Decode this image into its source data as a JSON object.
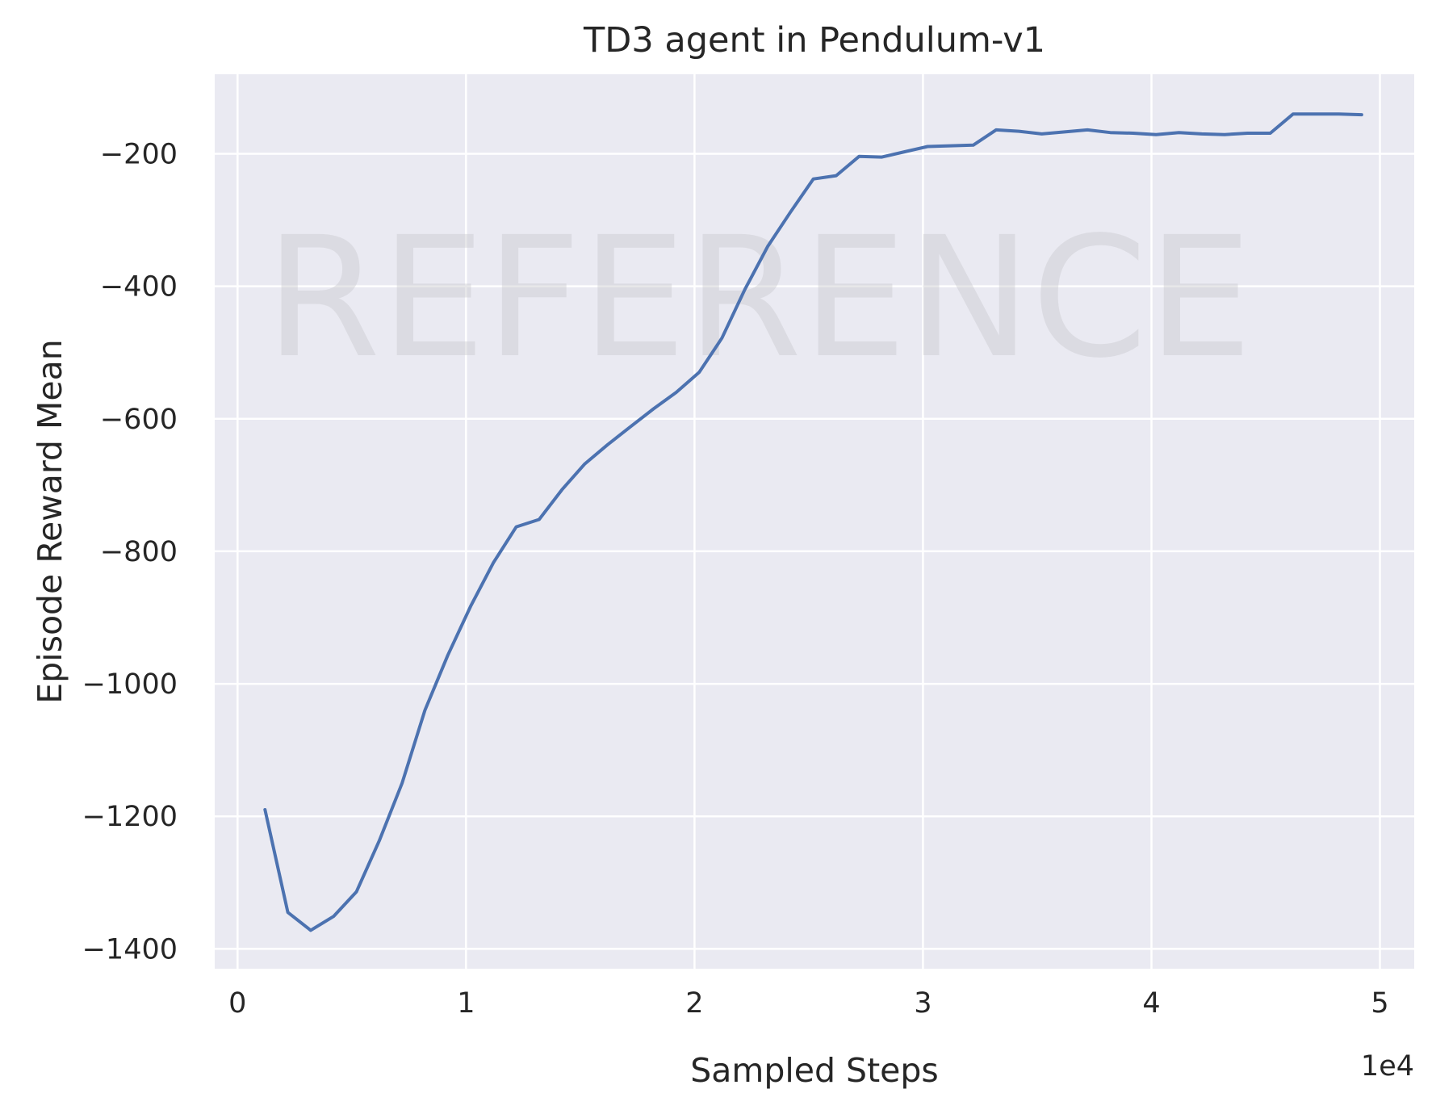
{
  "chart_data": {
    "type": "line",
    "title": "TD3 agent in Pendulum-v1",
    "xlabel": "Sampled Steps",
    "ylabel": "Episode Reward Mean",
    "x_offset_label": "1e4",
    "watermark": "REFERENCE",
    "xlim": [
      -1000,
      51500
    ],
    "ylim": [
      -1430,
      -80
    ],
    "xticks": [
      0,
      10000,
      20000,
      30000,
      40000,
      50000
    ],
    "xtick_labels": [
      "0",
      "1",
      "2",
      "3",
      "4",
      "5"
    ],
    "yticks": [
      -1400,
      -1200,
      -1000,
      -800,
      -600,
      -400,
      -200
    ],
    "ytick_labels": [
      "−1400",
      "−1200",
      "−1000",
      "−800",
      "−600",
      "−400",
      "−200"
    ],
    "grid": true,
    "colors": {
      "background": "#eaeaf2",
      "grid": "#ffffff",
      "line": "#4c72b0"
    },
    "series": [
      {
        "x": [
          1200,
          2200,
          3200,
          4200,
          5200,
          6200,
          7200,
          8200,
          9200,
          10200,
          11200,
          12200,
          13200,
          14200,
          15200,
          16200,
          17200,
          18200,
          19200,
          20200,
          21200,
          22200,
          23200,
          24200,
          25200,
          26200,
          27200,
          28200,
          29200,
          30200,
          31200,
          32200,
          33200,
          34200,
          35200,
          36200,
          37200,
          38200,
          39200,
          40200,
          41200,
          42200,
          43200,
          44200,
          45200,
          46200,
          47200,
          48200,
          49200
        ],
        "values": [
          -1190,
          -1345,
          -1372,
          -1351,
          -1314,
          -1237,
          -1150,
          -1040,
          -957,
          -883,
          -817,
          -763,
          -752,
          -707,
          -668,
          -639,
          -612,
          -585,
          -560,
          -530,
          -478,
          -405,
          -340,
          -288,
          -238,
          -233,
          -204,
          -205,
          -197,
          -189,
          -188,
          -187,
          -164,
          -166,
          -170,
          -167,
          -164,
          -168,
          -169,
          -171,
          -168,
          -170,
          -171,
          -169,
          -169,
          -140,
          -140,
          -140,
          -141
        ]
      }
    ]
  }
}
